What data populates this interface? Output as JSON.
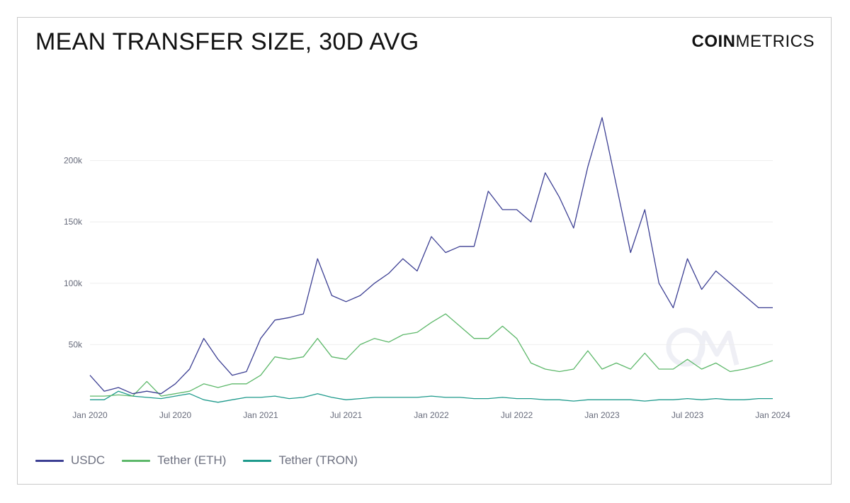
{
  "header": {
    "title": "MEAN TRANSFER SIZE, 30D AVG"
  },
  "brand": {
    "part1": "COIN",
    "part2": "METRICS"
  },
  "colors": {
    "usdc": "#3c3f93",
    "tether_eth": "#5db86a",
    "tether_tron": "#1e9a8c",
    "grid": "#eeeeee",
    "tick_text": "#666a7a"
  },
  "chart_data": {
    "type": "line",
    "title": "MEAN TRANSFER SIZE, 30D AVG",
    "xlabel": "",
    "ylabel": "",
    "x_ticks": [
      "Jan 2020",
      "Jul 2020",
      "Jan 2021",
      "Jul 2021",
      "Jan 2022",
      "Jul 2022",
      "Jan 2023",
      "Jul 2023",
      "Jan 2024"
    ],
    "y_ticks": [
      "50k",
      "100k",
      "150k",
      "200k"
    ],
    "y_tick_values": [
      50000,
      100000,
      150000,
      200000
    ],
    "ylim": [
      0,
      250000
    ],
    "grid": "horizontal",
    "legend_position": "bottom-left",
    "x": [
      "2020-01",
      "2020-02",
      "2020-03",
      "2020-04",
      "2020-05",
      "2020-06",
      "2020-07",
      "2020-08",
      "2020-09",
      "2020-10",
      "2020-11",
      "2020-12",
      "2021-01",
      "2021-02",
      "2021-03",
      "2021-04",
      "2021-05",
      "2021-06",
      "2021-07",
      "2021-08",
      "2021-09",
      "2021-10",
      "2021-11",
      "2021-12",
      "2022-01",
      "2022-02",
      "2022-03",
      "2022-04",
      "2022-05",
      "2022-06",
      "2022-07",
      "2022-08",
      "2022-09",
      "2022-10",
      "2022-11",
      "2022-12",
      "2023-01",
      "2023-02",
      "2023-03",
      "2023-04",
      "2023-05",
      "2023-06",
      "2023-07",
      "2023-08",
      "2023-09",
      "2023-10",
      "2023-11",
      "2023-12",
      "2024-01"
    ],
    "series": [
      {
        "name": "USDC",
        "values": [
          25000,
          12000,
          15000,
          10000,
          12000,
          10000,
          18000,
          30000,
          55000,
          38000,
          25000,
          28000,
          55000,
          70000,
          72000,
          75000,
          120000,
          90000,
          85000,
          90000,
          100000,
          108000,
          120000,
          110000,
          138000,
          125000,
          130000,
          130000,
          175000,
          160000,
          160000,
          150000,
          190000,
          170000,
          145000,
          195000,
          235000,
          180000,
          125000,
          160000,
          100000,
          80000,
          120000,
          95000,
          110000,
          100000,
          90000,
          80000,
          80000
        ]
      },
      {
        "name": "Tether (ETH)",
        "values": [
          8000,
          8000,
          9000,
          8000,
          20000,
          8000,
          10000,
          12000,
          18000,
          15000,
          18000,
          18000,
          25000,
          40000,
          38000,
          40000,
          55000,
          40000,
          38000,
          50000,
          55000,
          52000,
          58000,
          60000,
          68000,
          75000,
          65000,
          55000,
          55000,
          65000,
          55000,
          35000,
          30000,
          28000,
          30000,
          45000,
          30000,
          35000,
          30000,
          43000,
          30000,
          30000,
          38000,
          30000,
          35000,
          28000,
          30000,
          33000,
          37000
        ]
      },
      {
        "name": "Tether (TRON)",
        "values": [
          5000,
          5000,
          12000,
          8000,
          7000,
          6000,
          8000,
          10000,
          5000,
          3000,
          5000,
          7000,
          7000,
          8000,
          6000,
          7000,
          10000,
          7000,
          5000,
          6000,
          7000,
          7000,
          7000,
          7000,
          8000,
          7000,
          7000,
          6000,
          6000,
          7000,
          6000,
          6000,
          5000,
          5000,
          4000,
          5000,
          5000,
          5000,
          5000,
          4000,
          5000,
          5000,
          6000,
          5000,
          6000,
          5000,
          5000,
          6000,
          6000
        ]
      }
    ]
  }
}
